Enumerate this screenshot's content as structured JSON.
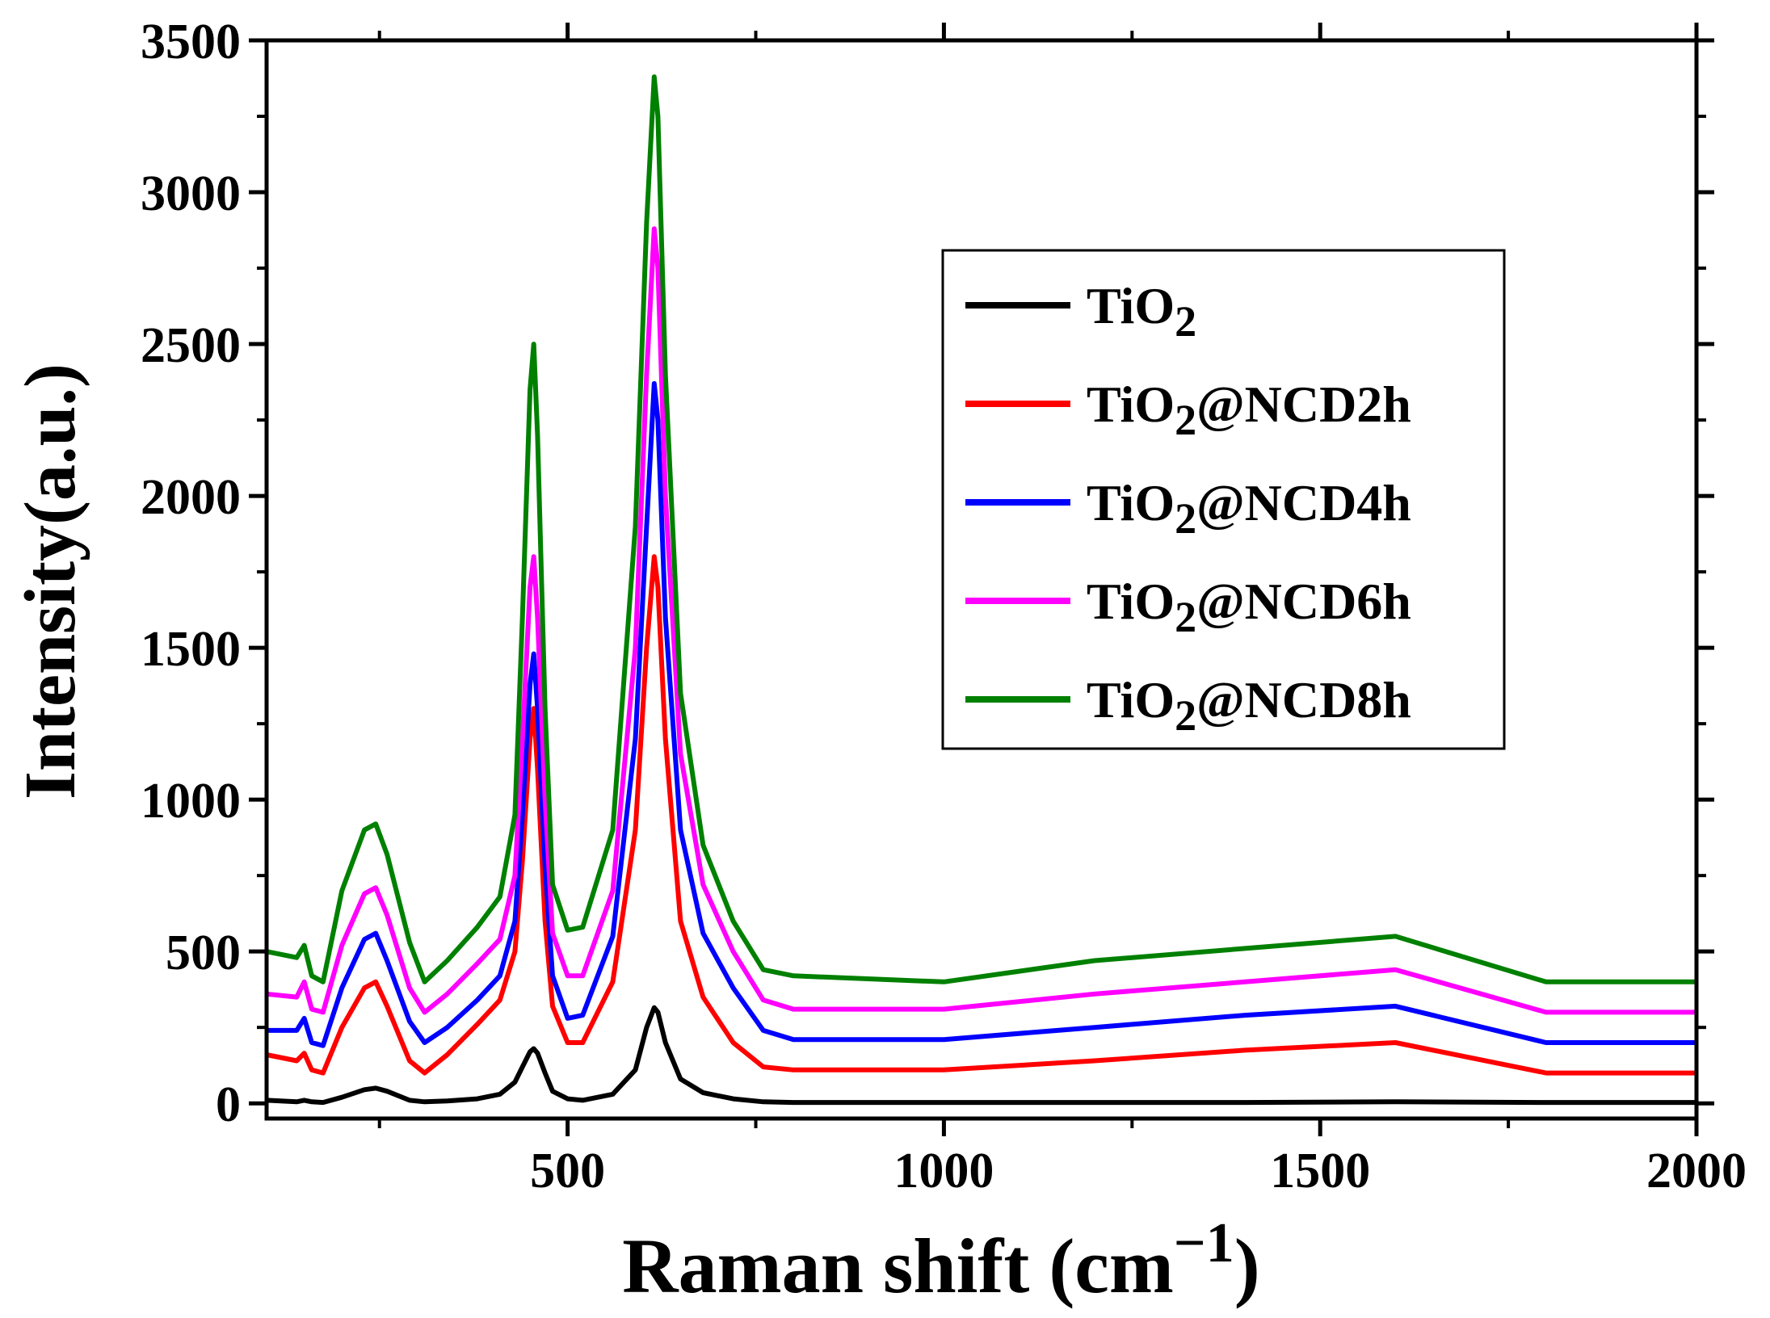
{
  "chart_data": {
    "type": "line",
    "title": "",
    "xlabel_main": "Raman shift (cm",
    "xlabel_sup": "−1",
    "xlabel_close": ")",
    "ylabel": "Intensity(a.u.)",
    "xlim": [
      100,
      2000
    ],
    "ylim": [
      -50,
      3500
    ],
    "x_ticks": [
      500,
      1000,
      1500,
      2000
    ],
    "y_ticks": [
      0,
      500,
      1000,
      1500,
      2000,
      2500,
      3000,
      3500
    ],
    "legend_position": "top-right",
    "series": [
      {
        "name": "TiO2",
        "label_main": "TiO",
        "label_sub": "2",
        "label_rest": "",
        "color": "#000000",
        "x": [
          100,
          140,
          150,
          160,
          175,
          200,
          230,
          245,
          260,
          290,
          310,
          340,
          380,
          410,
          430,
          440,
          450,
          455,
          460,
          470,
          480,
          500,
          520,
          560,
          590,
          605,
          615,
          620,
          630,
          650,
          680,
          720,
          760,
          800,
          1000,
          1200,
          1400,
          1600,
          1800,
          2000
        ],
        "y": [
          10,
          5,
          10,
          5,
          3,
          20,
          45,
          50,
          40,
          10,
          5,
          8,
          15,
          30,
          70,
          120,
          170,
          180,
          165,
          100,
          40,
          15,
          10,
          30,
          110,
          250,
          315,
          300,
          200,
          80,
          35,
          15,
          5,
          3,
          3,
          3,
          3,
          5,
          3,
          3
        ]
      },
      {
        "name": "TiO2@NCD2h",
        "label_main": "TiO",
        "label_sub": "2",
        "label_rest": "@NCD2h",
        "color": "#ff0000",
        "x": [
          100,
          140,
          150,
          160,
          175,
          200,
          230,
          245,
          260,
          290,
          310,
          340,
          380,
          410,
          430,
          440,
          450,
          455,
          460,
          470,
          480,
          500,
          520,
          560,
          590,
          605,
          615,
          620,
          630,
          650,
          680,
          720,
          760,
          800,
          1000,
          1200,
          1400,
          1600,
          1800,
          2000
        ],
        "y": [
          160,
          140,
          165,
          110,
          100,
          250,
          380,
          400,
          320,
          140,
          100,
          160,
          260,
          340,
          500,
          800,
          1200,
          1300,
          1100,
          600,
          320,
          200,
          200,
          400,
          900,
          1500,
          1800,
          1700,
          1200,
          600,
          350,
          200,
          120,
          110,
          110,
          140,
          175,
          200,
          100,
          100
        ]
      },
      {
        "name": "TiO2@NCD4h",
        "label_main": "TiO",
        "label_sub": "2",
        "label_rest": "@NCD4h",
        "color": "#0000ff",
        "x": [
          100,
          140,
          150,
          160,
          175,
          200,
          230,
          245,
          260,
          290,
          310,
          340,
          380,
          410,
          430,
          440,
          450,
          455,
          460,
          470,
          480,
          500,
          520,
          560,
          590,
          605,
          615,
          620,
          630,
          650,
          680,
          720,
          760,
          800,
          1000,
          1200,
          1400,
          1600,
          1800,
          2000
        ],
        "y": [
          240,
          240,
          280,
          200,
          190,
          380,
          540,
          560,
          470,
          270,
          200,
          250,
          340,
          420,
          600,
          950,
          1380,
          1480,
          1300,
          780,
          420,
          280,
          290,
          550,
          1200,
          1900,
          2370,
          2250,
          1600,
          900,
          560,
          380,
          240,
          210,
          210,
          250,
          290,
          320,
          200,
          200
        ]
      },
      {
        "name": "TiO2@NCD6h",
        "label_main": "TiO",
        "label_sub": "2",
        "label_rest": "@NCD6h",
        "color": "#ff00ff",
        "x": [
          100,
          140,
          150,
          160,
          175,
          200,
          230,
          245,
          260,
          290,
          310,
          340,
          380,
          410,
          430,
          440,
          450,
          455,
          460,
          470,
          480,
          500,
          520,
          560,
          590,
          605,
          615,
          620,
          630,
          650,
          680,
          720,
          760,
          800,
          1000,
          1200,
          1400,
          1600,
          1800,
          2000
        ],
        "y": [
          360,
          350,
          400,
          310,
          300,
          520,
          690,
          710,
          620,
          380,
          300,
          360,
          460,
          540,
          750,
          1200,
          1700,
          1800,
          1600,
          1000,
          560,
          420,
          420,
          700,
          1500,
          2400,
          2880,
          2750,
          2000,
          1150,
          720,
          500,
          340,
          310,
          310,
          360,
          400,
          440,
          300,
          300
        ]
      },
      {
        "name": "TiO2@NCD8h",
        "label_main": "TiO",
        "label_sub": "2",
        "label_rest": "@NCD8h",
        "color": "#008000",
        "x": [
          100,
          140,
          150,
          160,
          175,
          200,
          230,
          245,
          260,
          290,
          310,
          340,
          380,
          410,
          430,
          440,
          450,
          455,
          460,
          470,
          480,
          500,
          520,
          560,
          590,
          605,
          615,
          620,
          630,
          650,
          680,
          720,
          760,
          800,
          1000,
          1200,
          1400,
          1600,
          1800,
          2000
        ],
        "y": [
          500,
          480,
          520,
          420,
          400,
          700,
          900,
          920,
          820,
          530,
          400,
          470,
          580,
          680,
          950,
          1600,
          2350,
          2500,
          2200,
          1300,
          720,
          570,
          580,
          900,
          1900,
          2900,
          3380,
          3250,
          2400,
          1350,
          850,
          600,
          440,
          420,
          400,
          470,
          510,
          550,
          400,
          400
        ]
      }
    ]
  }
}
